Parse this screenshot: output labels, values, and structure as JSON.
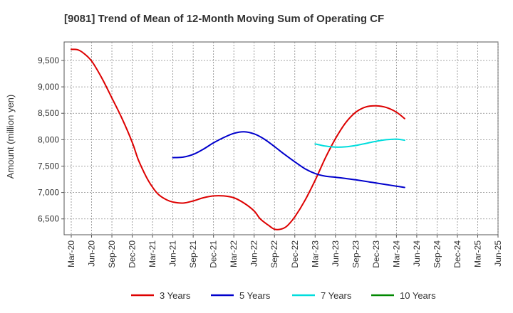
{
  "chart_data": {
    "type": "line",
    "title": "[9081]  Trend of Mean of 12-Month Moving Sum of Operating CF",
    "xlabel": "",
    "ylabel": "Amount (million yen)",
    "ylim": [
      6200,
      9850
    ],
    "yticks": [
      6500,
      7000,
      7500,
      8000,
      8500,
      9000,
      9500
    ],
    "ytick_labels": [
      "6,500",
      "7,000",
      "7,500",
      "8,000",
      "8,500",
      "9,000",
      "9,500"
    ],
    "x_tick_labels": [
      "Mar-20",
      "Jun-20",
      "Sep-20",
      "Dec-20",
      "Mar-21",
      "Jun-21",
      "Sep-21",
      "Dec-21",
      "Mar-22",
      "Jun-22",
      "Sep-22",
      "Dec-22",
      "Mar-23",
      "Jun-23",
      "Sep-23",
      "Dec-23",
      "Mar-24",
      "Jun-24",
      "Sep-24",
      "Dec-24",
      "Mar-25",
      "Jun-25"
    ],
    "grid": true,
    "legend_position": "bottom",
    "series": [
      {
        "name": "3 Years",
        "color": "#dd0000",
        "points": [
          [
            0,
            9710
          ],
          [
            0.3,
            9705
          ],
          [
            0.6,
            9640
          ],
          [
            1,
            9490
          ],
          [
            1.5,
            9170
          ],
          [
            2,
            8790
          ],
          [
            2.5,
            8400
          ],
          [
            3,
            7950
          ],
          [
            3.3,
            7620
          ],
          [
            3.7,
            7290
          ],
          [
            4,
            7100
          ],
          [
            4.3,
            6960
          ],
          [
            4.7,
            6860
          ],
          [
            5,
            6820
          ],
          [
            5.5,
            6800
          ],
          [
            6,
            6840
          ],
          [
            6.5,
            6900
          ],
          [
            7,
            6935
          ],
          [
            7.5,
            6935
          ],
          [
            8,
            6900
          ],
          [
            8.5,
            6800
          ],
          [
            9,
            6650
          ],
          [
            9.3,
            6500
          ],
          [
            9.7,
            6380
          ],
          [
            10,
            6305
          ],
          [
            10.3,
            6305
          ],
          [
            10.6,
            6360
          ],
          [
            11,
            6540
          ],
          [
            11.5,
            6850
          ],
          [
            12,
            7230
          ],
          [
            12.5,
            7650
          ],
          [
            13,
            8020
          ],
          [
            13.5,
            8320
          ],
          [
            14,
            8520
          ],
          [
            14.5,
            8620
          ],
          [
            15,
            8640
          ],
          [
            15.5,
            8610
          ],
          [
            16,
            8520
          ],
          [
            16.4,
            8400
          ]
        ]
      },
      {
        "name": "5 Years",
        "color": "#0000cc",
        "points": [
          [
            5,
            7660
          ],
          [
            5.5,
            7670
          ],
          [
            6,
            7720
          ],
          [
            6.5,
            7820
          ],
          [
            7,
            7940
          ],
          [
            7.5,
            8040
          ],
          [
            8,
            8120
          ],
          [
            8.5,
            8150
          ],
          [
            9,
            8110
          ],
          [
            9.5,
            8010
          ],
          [
            10,
            7870
          ],
          [
            10.5,
            7720
          ],
          [
            11,
            7580
          ],
          [
            11.5,
            7450
          ],
          [
            12,
            7360
          ],
          [
            12.5,
            7310
          ],
          [
            13,
            7290
          ],
          [
            13.5,
            7265
          ],
          [
            14,
            7240
          ],
          [
            14.5,
            7210
          ],
          [
            15,
            7180
          ],
          [
            15.5,
            7150
          ],
          [
            16,
            7120
          ],
          [
            16.4,
            7095
          ]
        ]
      },
      {
        "name": "7 Years",
        "color": "#00dddd",
        "points": [
          [
            12,
            7920
          ],
          [
            12.5,
            7880
          ],
          [
            13,
            7860
          ],
          [
            13.5,
            7865
          ],
          [
            14,
            7890
          ],
          [
            14.5,
            7930
          ],
          [
            15,
            7970
          ],
          [
            15.5,
            8000
          ],
          [
            16,
            8010
          ],
          [
            16.4,
            7990
          ]
        ]
      },
      {
        "name": "10 Years",
        "color": "#008800",
        "points": []
      }
    ]
  }
}
